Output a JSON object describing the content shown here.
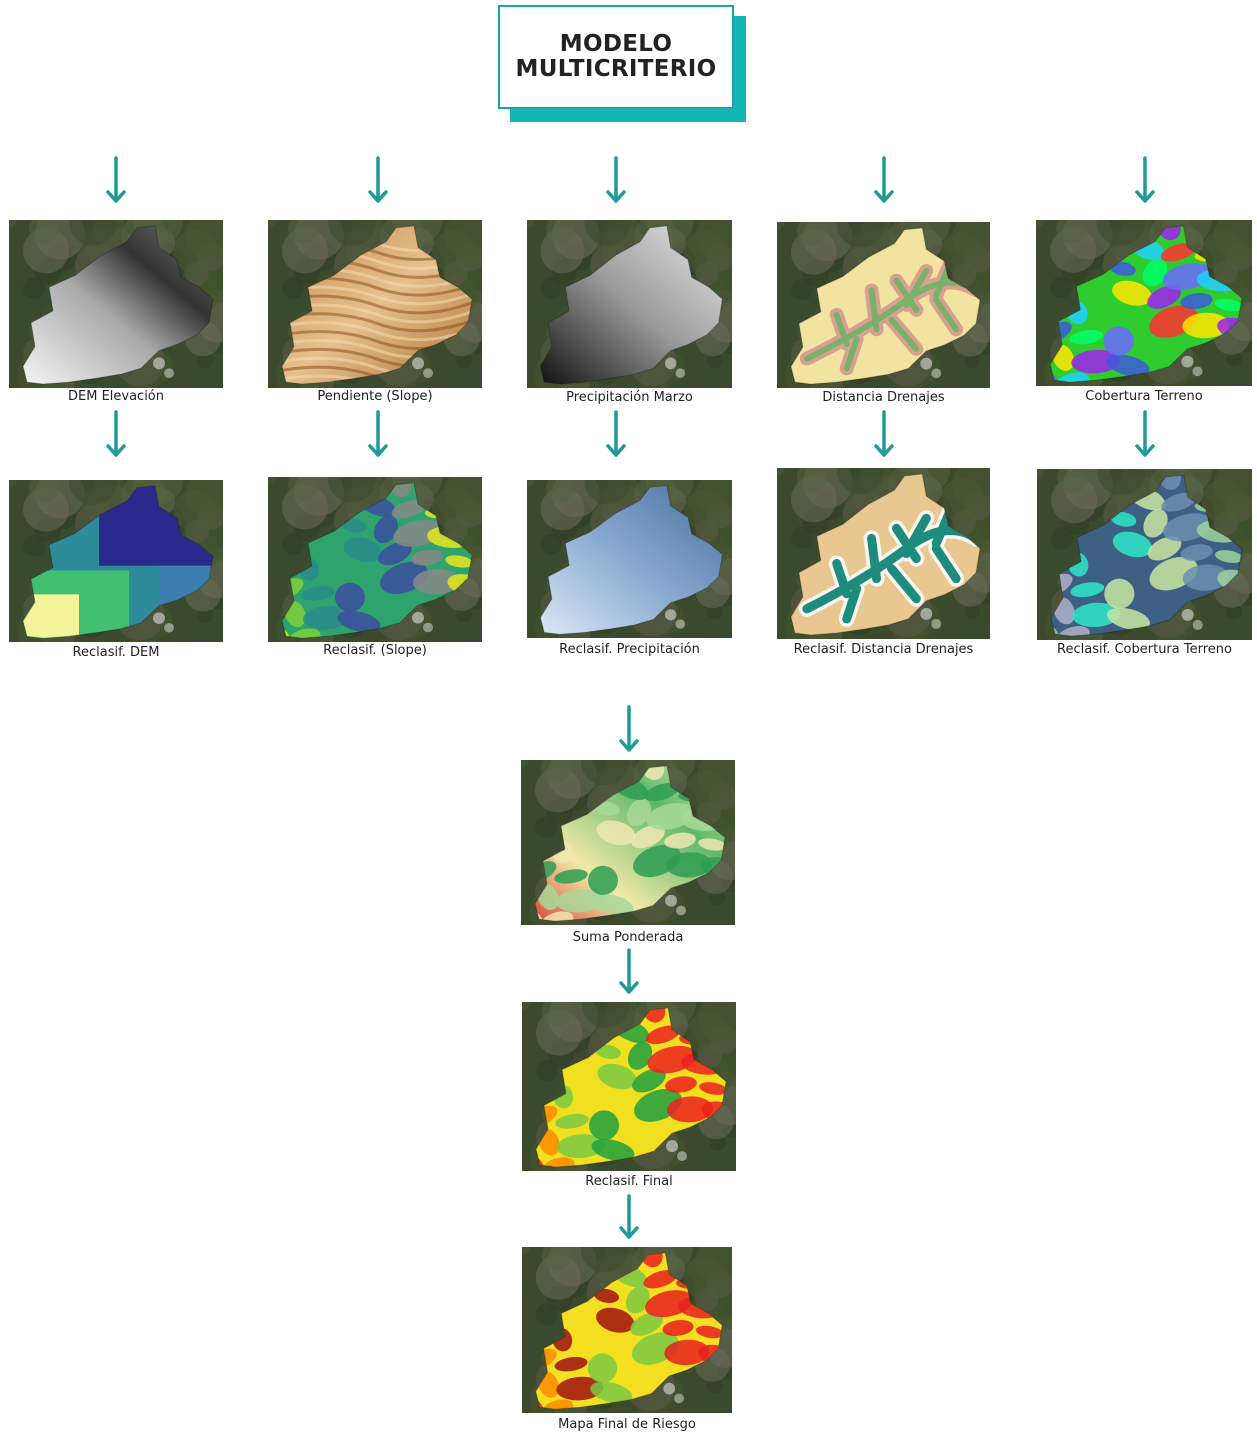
{
  "title": "MODELO\nMULTICRITERIO",
  "inputs": [
    {
      "label": "DEM Elevación",
      "style": "dem"
    },
    {
      "label": "Pendiente (Slope)",
      "style": "slope"
    },
    {
      "label": "Precipitación Marzo",
      "style": "precip"
    },
    {
      "label": "Distancia Drenajes",
      "style": "drain"
    },
    {
      "label": "Cobertura Terreno",
      "style": "cover"
    }
  ],
  "reclass": [
    {
      "label": "Reclasif. DEM",
      "style": "r-dem"
    },
    {
      "label": "Reclasif. (Slope)",
      "style": "r-slope"
    },
    {
      "label": "Reclasif. Precipitación",
      "style": "r-precip"
    },
    {
      "label": "Reclasif. Distancia Drenajes",
      "style": "r-drain"
    },
    {
      "label": "Reclasif. Cobertura  Terreno",
      "style": "r-cover"
    }
  ],
  "outputs": [
    {
      "label": "Suma Ponderada",
      "style": "sum"
    },
    {
      "label": "Reclasif.  Final",
      "style": "final"
    },
    {
      "label": "Mapa Final de Riesgo",
      "style": "risk"
    }
  ],
  "colors": {
    "connector_start": "#1a9a9c",
    "connector_end": "#7cd17b",
    "arrow": "#1f9a96"
  }
}
